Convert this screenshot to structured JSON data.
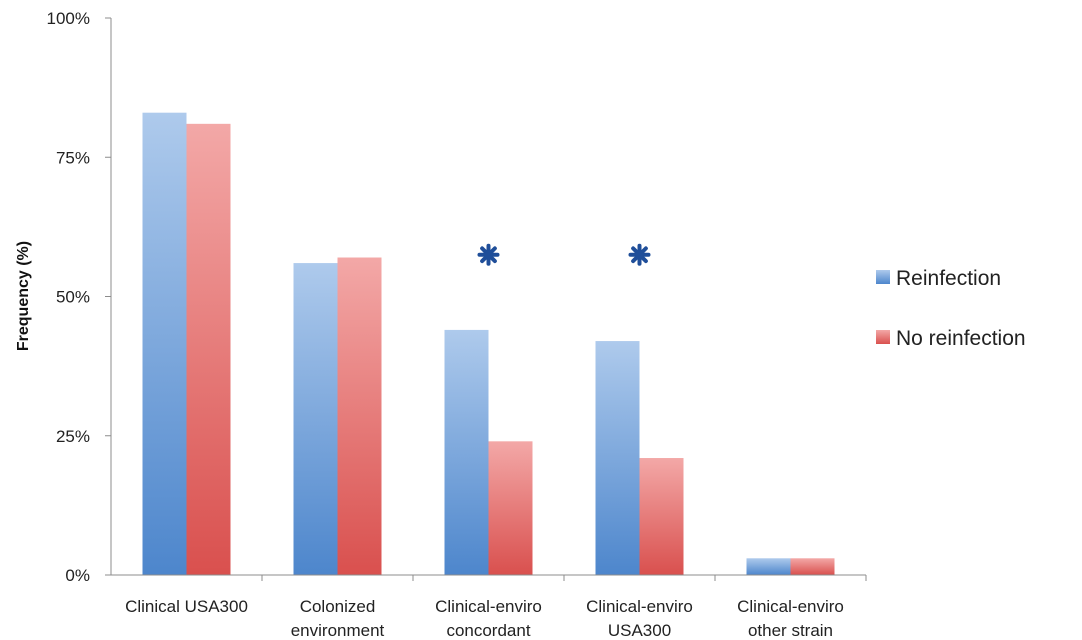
{
  "chart_data": {
    "type": "bar",
    "title": "",
    "xlabel": "",
    "ylabel": "Frequency (%)",
    "ylim": [
      0,
      100
    ],
    "yticks": [
      "0%",
      "25%",
      "50%",
      "75%",
      "100%"
    ],
    "ytick_values": [
      0,
      25,
      50,
      75,
      100
    ],
    "grid": false,
    "legend_position": "right",
    "categories": [
      [
        "Clinical USA300"
      ],
      [
        "Colonized",
        "environment"
      ],
      [
        "Clinical-enviro",
        "concordant"
      ],
      [
        "Clinical-enviro",
        "USA300"
      ],
      [
        "Clinical-enviro",
        "other strain"
      ]
    ],
    "series": [
      {
        "name": "Reinfection",
        "color": "#5b8fd0",
        "values": [
          83,
          56,
          44,
          42,
          3
        ]
      },
      {
        "name": "No reinfection",
        "color": "#d95452",
        "values": [
          81,
          57,
          24,
          21,
          3
        ]
      }
    ],
    "annotations": [
      {
        "category_index": 2,
        "symbol": "asterisk",
        "value": 57.5,
        "color": "#1f4e99"
      },
      {
        "category_index": 3,
        "symbol": "asterisk",
        "value": 57.5,
        "color": "#1f4e99"
      }
    ]
  }
}
